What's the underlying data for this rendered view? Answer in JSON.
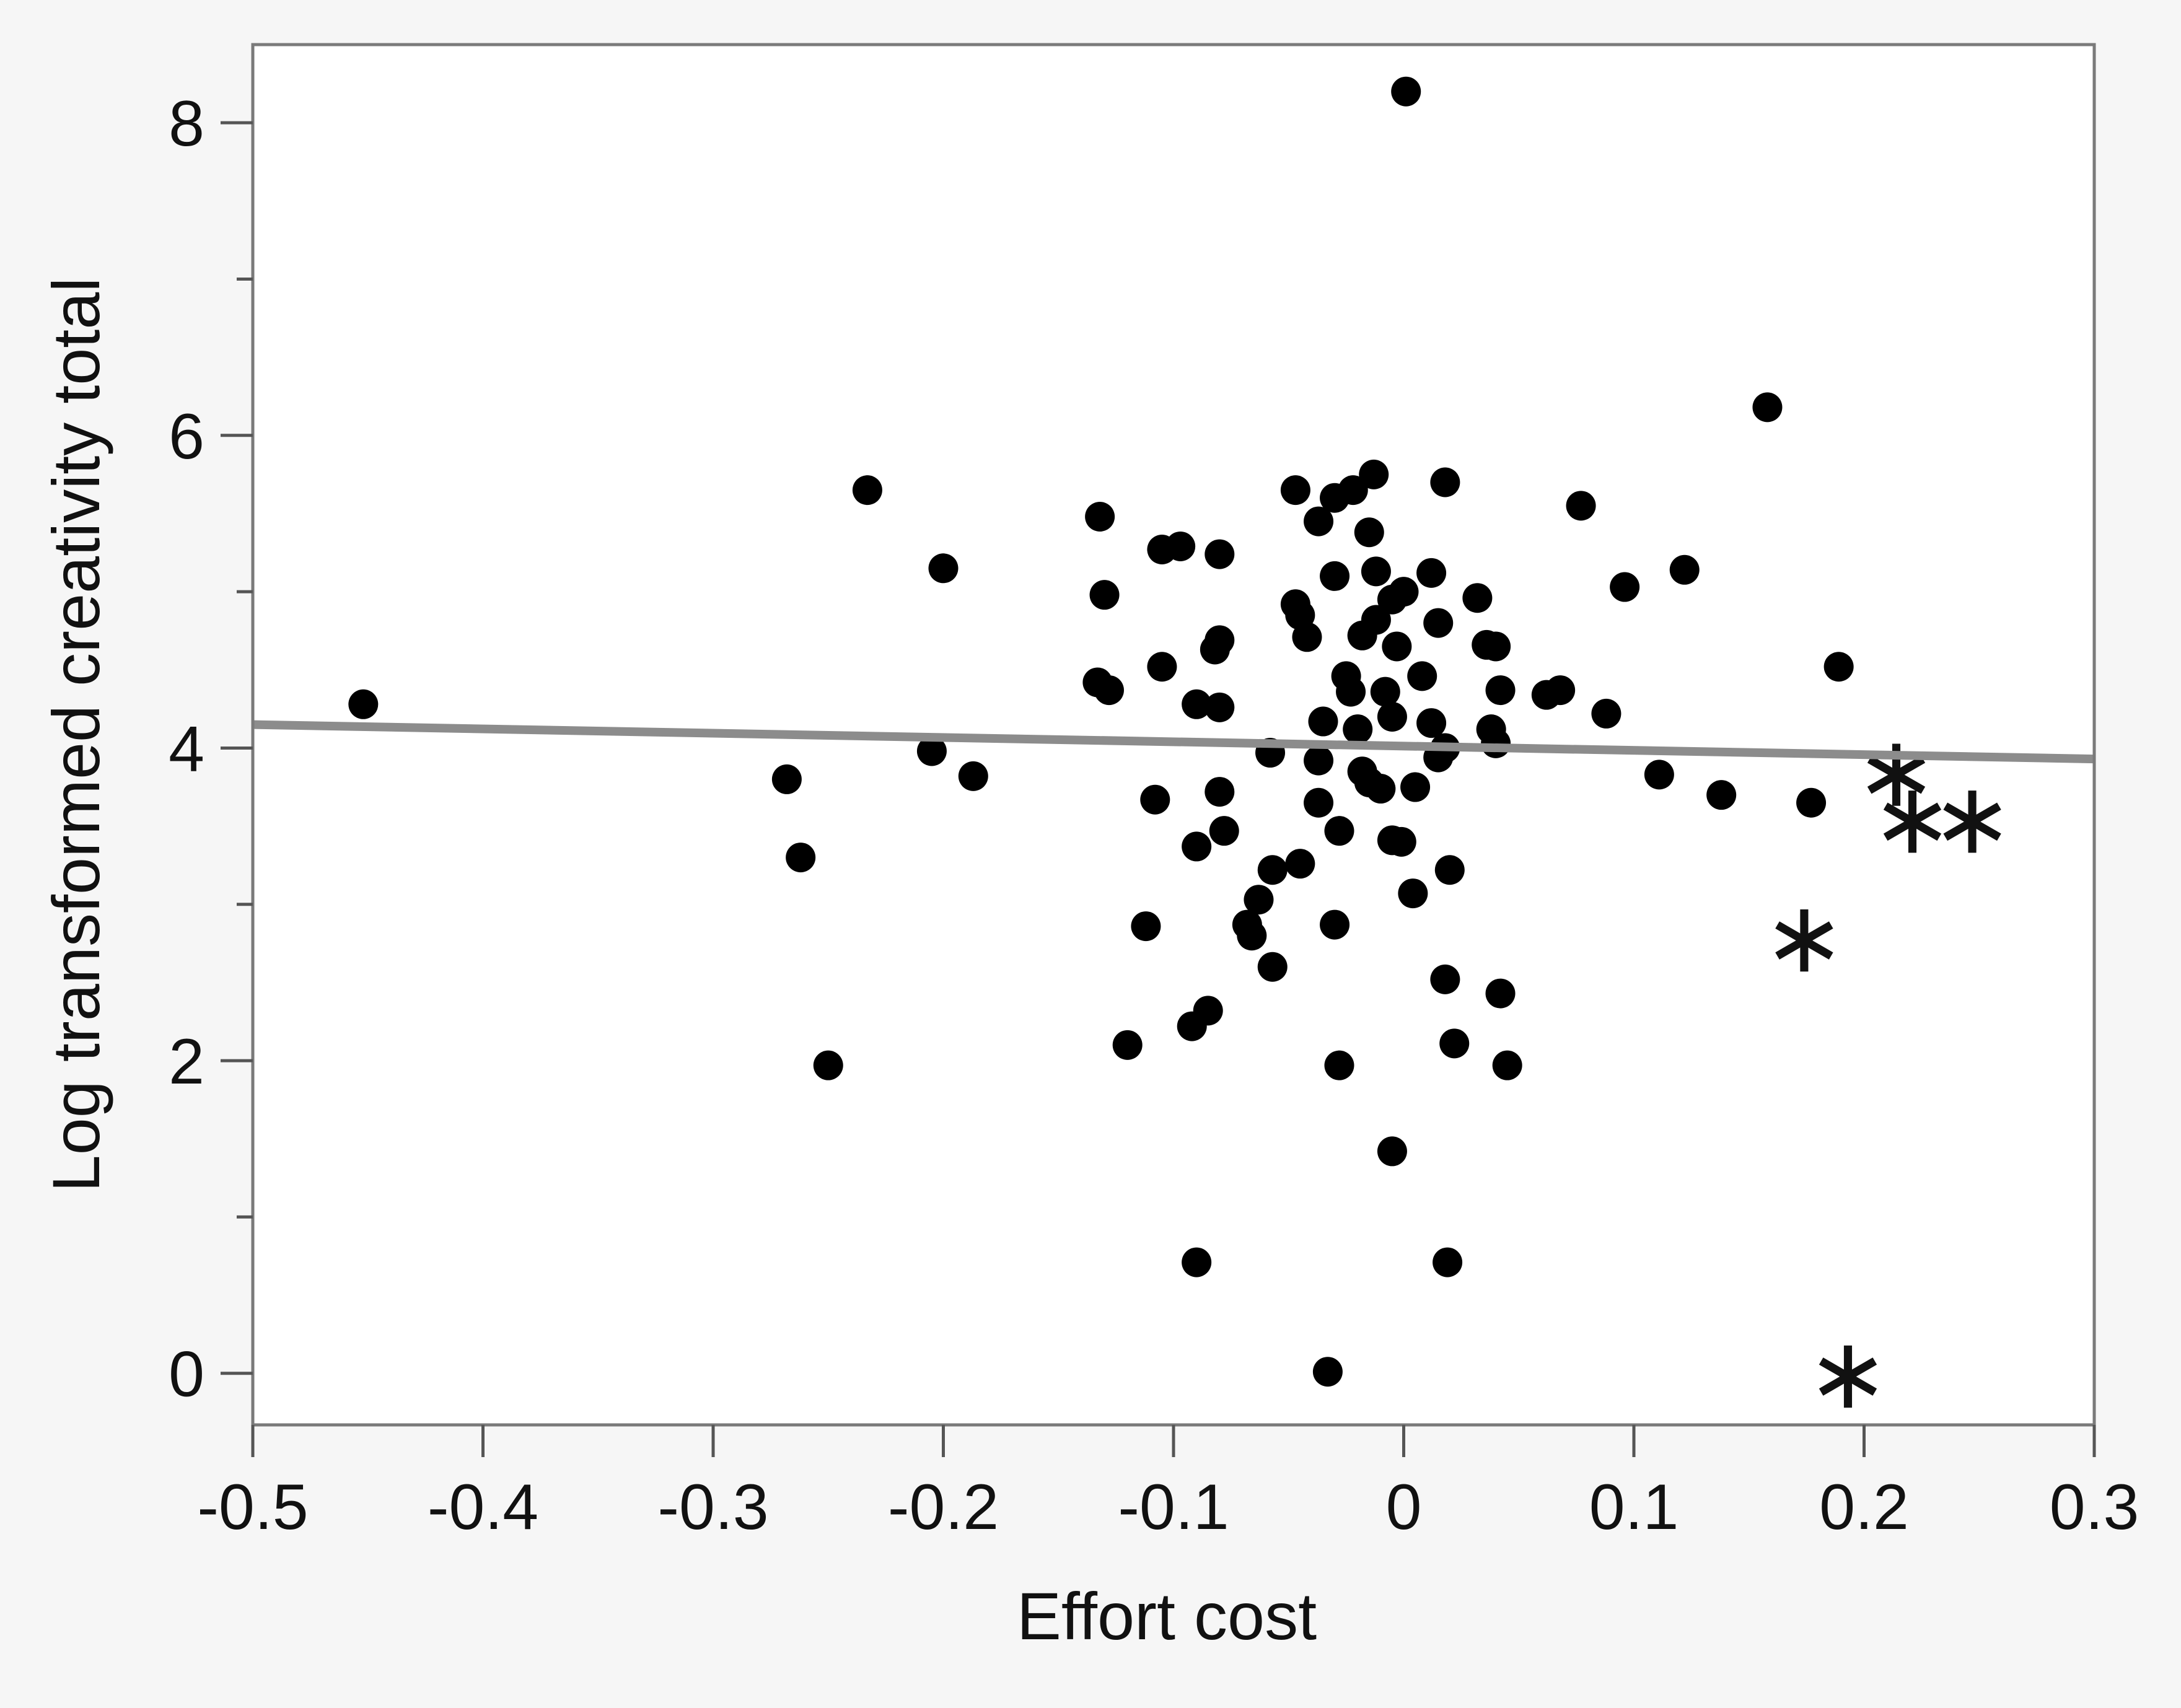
{
  "chart_data": {
    "type": "scatter",
    "xlabel": "Effort cost",
    "ylabel": "Log transformed creativity total",
    "xlim": [
      -0.5,
      0.3
    ],
    "ylim": [
      -0.33,
      8.5
    ],
    "x_ticks": [
      -0.5,
      -0.4,
      -0.3,
      -0.2,
      -0.1,
      0,
      0.1,
      0.2,
      0.3
    ],
    "x_tick_labels": [
      "-0.5",
      "-0.4",
      "-0.3",
      "-0.2",
      "-0.1",
      "0",
      "0.1",
      "0.2",
      "0.3"
    ],
    "y_ticks": [
      0,
      2,
      4,
      6,
      8
    ],
    "y_tick_labels": [
      "0",
      "2",
      "4",
      "6",
      "8"
    ],
    "y_minor_ticks": [
      1,
      3,
      5,
      7
    ],
    "grid": false,
    "colors": {
      "points": "#000000",
      "fit_line": "#8c8c8c",
      "frame": "#7a7a7a",
      "plot_bg": "#ffffff"
    },
    "fit_line": {
      "x": [
        -0.5,
        0.3
      ],
      "y": [
        4.15,
        3.93
      ]
    },
    "series": [
      {
        "marker": "circle",
        "points": [
          [
            -0.452,
            4.28
          ],
          [
            0.001,
            8.2
          ],
          [
            0.158,
            6.18
          ],
          [
            -0.233,
            5.65
          ],
          [
            -0.2,
            5.15
          ],
          [
            -0.268,
            3.8
          ],
          [
            -0.262,
            3.3
          ],
          [
            -0.25,
            1.97
          ],
          [
            -0.205,
            3.98
          ],
          [
            -0.187,
            3.82
          ],
          [
            -0.132,
            5.48
          ],
          [
            -0.13,
            4.98
          ],
          [
            -0.133,
            4.42
          ],
          [
            -0.128,
            4.37
          ],
          [
            -0.105,
            5.27
          ],
          [
            -0.097,
            5.29
          ],
          [
            -0.08,
            5.24
          ],
          [
            -0.105,
            4.52
          ],
          [
            -0.09,
            4.28
          ],
          [
            -0.08,
            4.26
          ],
          [
            -0.082,
            4.63
          ],
          [
            -0.08,
            4.69
          ],
          [
            -0.108,
            3.67
          ],
          [
            -0.08,
            3.72
          ],
          [
            -0.09,
            3.37
          ],
          [
            -0.078,
            3.47
          ],
          [
            -0.112,
            2.86
          ],
          [
            -0.12,
            2.1
          ],
          [
            -0.092,
            2.22
          ],
          [
            -0.085,
            2.32
          ],
          [
            -0.09,
            0.71
          ],
          [
            -0.047,
            5.65
          ],
          [
            -0.03,
            5.6
          ],
          [
            -0.037,
            5.45
          ],
          [
            -0.022,
            5.65
          ],
          [
            -0.013,
            5.75
          ],
          [
            -0.015,
            5.38
          ],
          [
            -0.03,
            5.1
          ],
          [
            -0.047,
            4.92
          ],
          [
            -0.045,
            4.85
          ],
          [
            -0.042,
            4.71
          ],
          [
            -0.035,
            4.17
          ],
          [
            -0.037,
            3.92
          ],
          [
            -0.058,
            3.97
          ],
          [
            -0.037,
            3.65
          ],
          [
            -0.028,
            3.47
          ],
          [
            -0.057,
            3.22
          ],
          [
            -0.045,
            3.26
          ],
          [
            -0.063,
            3.03
          ],
          [
            -0.068,
            2.87
          ],
          [
            -0.066,
            2.8
          ],
          [
            -0.057,
            2.6
          ],
          [
            -0.03,
            2.87
          ],
          [
            -0.028,
            1.97
          ],
          [
            -0.033,
            0.01
          ],
          [
            -0.012,
            5.13
          ],
          [
            -0.005,
            4.95
          ],
          [
            0.0,
            5.0
          ],
          [
            -0.012,
            4.82
          ],
          [
            -0.018,
            4.72
          ],
          [
            -0.003,
            4.65
          ],
          [
            -0.025,
            4.46
          ],
          [
            -0.023,
            4.36
          ],
          [
            -0.008,
            4.36
          ],
          [
            -0.005,
            4.2
          ],
          [
            -0.02,
            4.12
          ],
          [
            -0.018,
            3.85
          ],
          [
            -0.015,
            3.78
          ],
          [
            -0.01,
            3.74
          ],
          [
            -0.005,
            3.41
          ],
          [
            -0.001,
            3.4
          ],
          [
            -0.005,
            1.42
          ],
          [
            0.012,
            5.12
          ],
          [
            0.018,
            5.7
          ],
          [
            0.015,
            4.8
          ],
          [
            0.008,
            4.46
          ],
          [
            0.012,
            4.16
          ],
          [
            0.018,
            4.0
          ],
          [
            0.015,
            3.94
          ],
          [
            0.005,
            3.75
          ],
          [
            0.02,
            3.22
          ],
          [
            0.004,
            3.07
          ],
          [
            0.018,
            2.52
          ],
          [
            0.022,
            2.11
          ],
          [
            0.019,
            0.71
          ],
          [
            0.032,
            4.96
          ],
          [
            0.036,
            4.66
          ],
          [
            0.04,
            4.65
          ],
          [
            0.038,
            4.12
          ],
          [
            0.04,
            4.03
          ],
          [
            0.042,
            4.37
          ],
          [
            0.042,
            2.43
          ],
          [
            0.045,
            1.97
          ],
          [
            0.062,
            4.34
          ],
          [
            0.068,
            4.37
          ],
          [
            0.077,
            5.55
          ],
          [
            0.088,
            4.22
          ],
          [
            0.096,
            5.03
          ],
          [
            0.111,
            3.83
          ],
          [
            0.122,
            5.14
          ],
          [
            0.138,
            3.7
          ],
          [
            0.177,
            3.65
          ],
          [
            0.189,
            4.52
          ]
        ]
      },
      {
        "marker": "star",
        "points": [
          [
            0.214,
            3.86
          ],
          [
            0.221,
            3.56
          ],
          [
            0.247,
            3.56
          ],
          [
            0.174,
            2.8
          ],
          [
            0.193,
            0.01
          ]
        ]
      }
    ]
  }
}
